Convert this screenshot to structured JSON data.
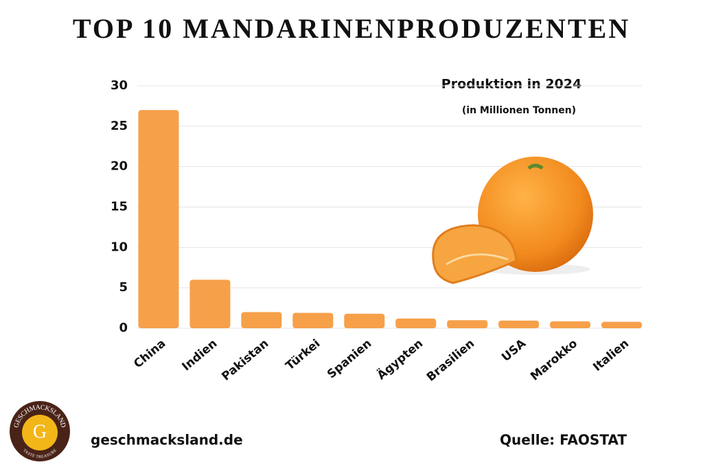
{
  "chart_data": {
    "type": "bar",
    "title": "TOP 10 MANDARINENPRODUZENTEN",
    "subtitle": "Produktion in 2024",
    "unit_note": "(in Millionen Tonnen)",
    "categories": [
      "China",
      "Indien",
      "Pakistan",
      "Türkei",
      "Spanien",
      "Ägypten",
      "Brasilien",
      "USA",
      "Marokko",
      "Italien"
    ],
    "values": [
      27,
      6,
      2,
      1.9,
      1.8,
      1.2,
      1.0,
      0.95,
      0.85,
      0.8
    ],
    "color": "#f6a04a",
    "ylim": [
      0,
      30
    ],
    "yticks": [
      0,
      5,
      10,
      15,
      20,
      25,
      30
    ],
    "grid": true,
    "footer": {
      "website": "geschmacksland.de",
      "source": "Quelle: FAOSTAT",
      "logo": {
        "name": "GESCHMACKSLAND",
        "letter": "G",
        "tagline": "TASTE TREASURE"
      }
    }
  }
}
